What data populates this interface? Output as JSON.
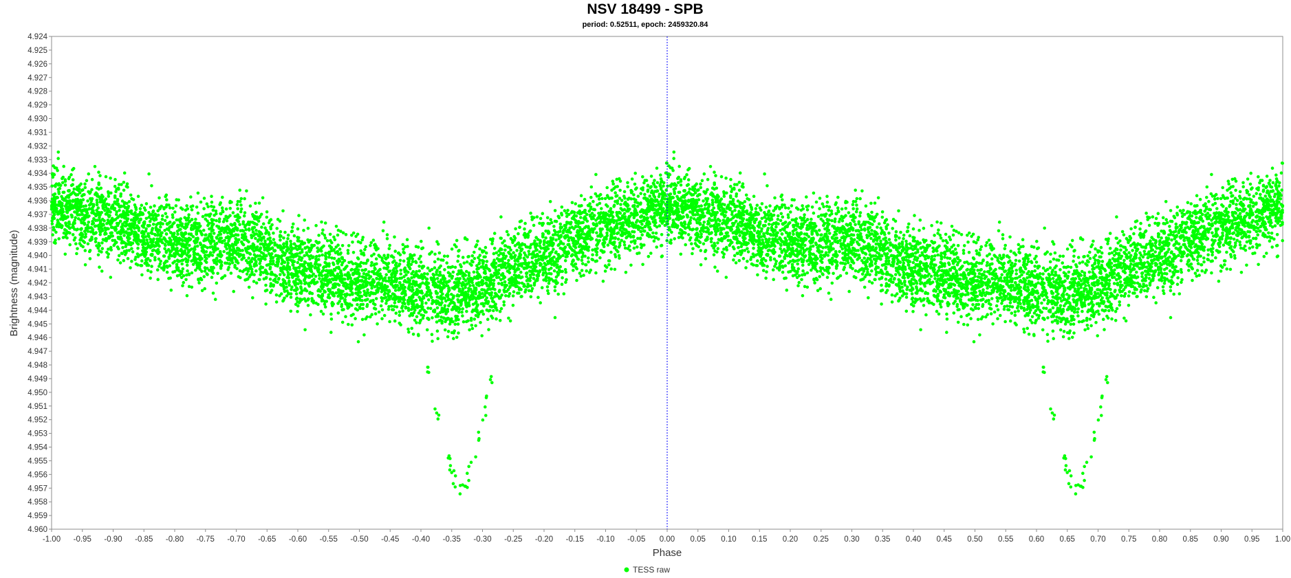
{
  "chart_data": {
    "type": "scatter",
    "title": "NSV 18499 - SPB",
    "subtitle": "period: 0.52511, epoch: 2459320.84",
    "xlabel": "Phase",
    "ylabel": "Brightness (magnitude)",
    "xlim": [
      -1.0,
      1.0
    ],
    "ylim": [
      4.96,
      4.924
    ],
    "y_inverted": true,
    "grid": false,
    "marker_line_x": 0.0,
    "marker_line_color": "#0000ff",
    "x_ticks": [
      "-1.00",
      "-0.95",
      "-0.90",
      "-0.85",
      "-0.80",
      "-0.75",
      "-0.70",
      "-0.65",
      "-0.60",
      "-0.55",
      "-0.50",
      "-0.45",
      "-0.40",
      "-0.35",
      "-0.30",
      "-0.25",
      "-0.20",
      "-0.15",
      "-0.10",
      "-0.05",
      "0.00",
      "0.05",
      "0.10",
      "0.15",
      "0.20",
      "0.25",
      "0.30",
      "0.35",
      "0.40",
      "0.45",
      "0.50",
      "0.55",
      "0.60",
      "0.65",
      "0.70",
      "0.75",
      "0.80",
      "0.85",
      "0.90",
      "0.95",
      "1.00"
    ],
    "y_ticks": [
      "4.924",
      "4.925",
      "4.926",
      "4.927",
      "4.928",
      "4.929",
      "4.930",
      "4.931",
      "4.932",
      "4.933",
      "4.934",
      "4.935",
      "4.936",
      "4.937",
      "4.938",
      "4.939",
      "4.940",
      "4.941",
      "4.942",
      "4.943",
      "4.944",
      "4.945",
      "4.946",
      "4.947",
      "4.948",
      "4.949",
      "4.950",
      "4.951",
      "4.952",
      "4.953",
      "4.954",
      "4.955",
      "4.956",
      "4.957",
      "4.958",
      "4.959",
      "4.960"
    ],
    "legend_position": "bottom-center",
    "series": [
      {
        "name": "TESS raw",
        "color": "#00ff00",
        "note_shape": "phased light curve, repeated every 1.0 in phase",
        "curve_phase": [
          0.0,
          0.05,
          0.1,
          0.15,
          0.2,
          0.25,
          0.3,
          0.35,
          0.4,
          0.45,
          0.5,
          0.55,
          0.6,
          0.65,
          0.7,
          0.75,
          0.8,
          0.85,
          0.9,
          0.95,
          1.0
        ],
        "curve_mag": [
          4.9365,
          4.937,
          4.9375,
          4.9385,
          4.939,
          4.9393,
          4.9388,
          4.9398,
          4.941,
          4.9415,
          4.9418,
          4.942,
          4.9425,
          4.9428,
          4.9422,
          4.941,
          4.94,
          4.939,
          4.938,
          4.9372,
          4.9365
        ],
        "scatter_spread": 0.0045,
        "eclipse_phase": 0.665,
        "eclipse_min_mag": 4.958,
        "eclipse_edge_mag": 4.949,
        "eclipse_half_width": 0.055
      }
    ]
  }
}
